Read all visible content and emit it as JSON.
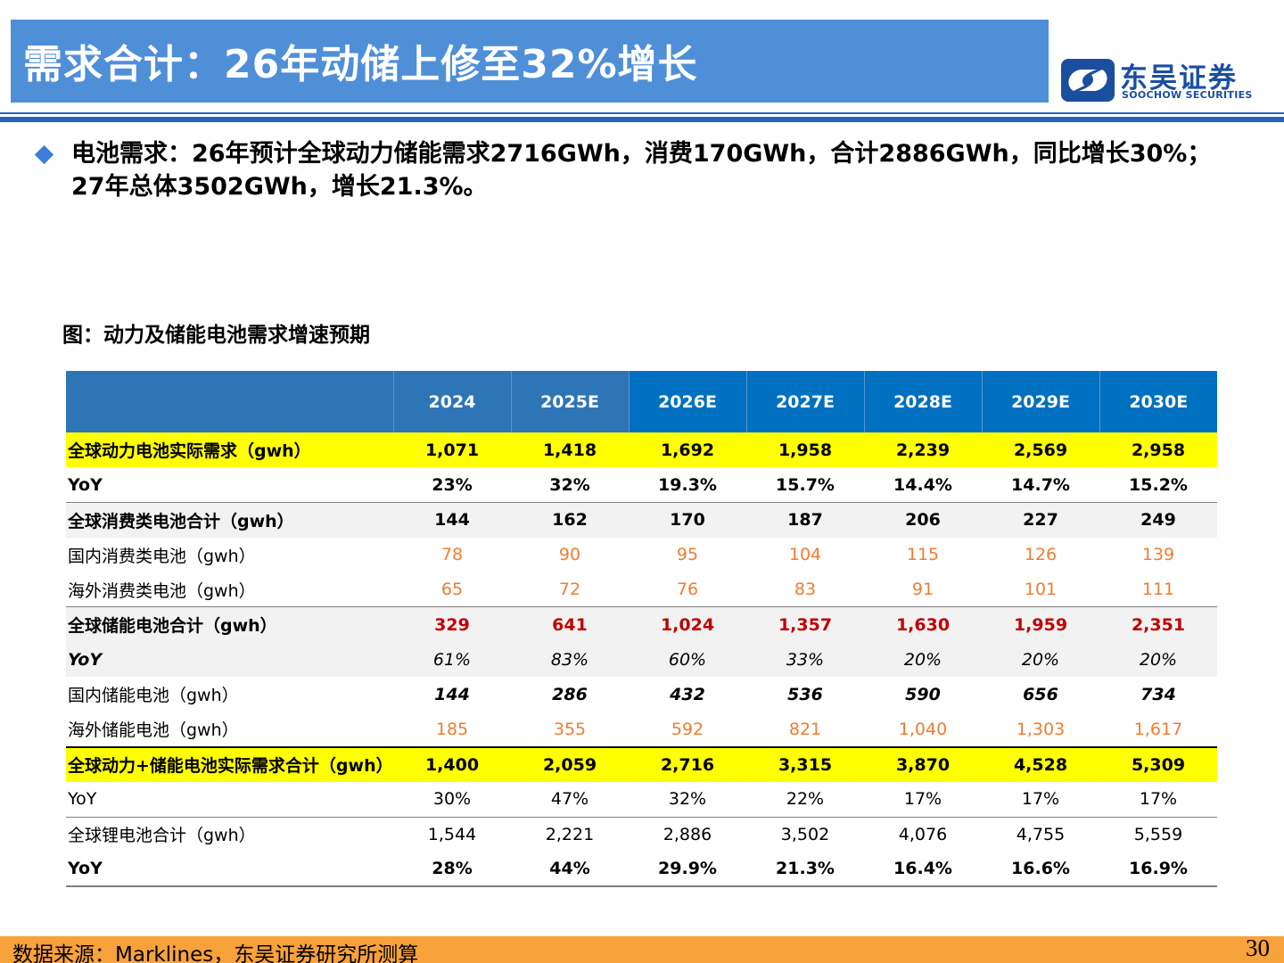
{
  "header": {
    "title": "需求合计：26年动储上修至32%增长",
    "logo_cn": "东吴证券",
    "logo_en": "SOOCHOW SECURITIES"
  },
  "bullet": {
    "line1": "电池需求：26年预计全球动力储能需求2716GWh，消费170GWh，合计2886GWh，同比增长30%；",
    "line2": "27年总体3502GWh，增长21.3%。"
  },
  "figure_caption": "图：动力及储能电池需求增速预期",
  "table": {
    "header": [
      "",
      "2024",
      "2025E",
      "2026E",
      "2027E",
      "2028E",
      "2029E",
      "2030E"
    ],
    "rows": [
      {
        "label": "全球动力电池实际需求（gwh）",
        "values": [
          "1,071",
          "1,418",
          "1,692",
          "1,958",
          "2,239",
          "2,569",
          "2,958"
        ]
      },
      {
        "label": "YoY",
        "values": [
          "23%",
          "32%",
          "19.3%",
          "15.7%",
          "14.4%",
          "14.7%",
          "15.2%"
        ]
      },
      {
        "label": "全球消费类电池合计（gwh）",
        "values": [
          "144",
          "162",
          "170",
          "187",
          "206",
          "227",
          "249"
        ]
      },
      {
        "label": "国内消费类电池（gwh）",
        "values": [
          "78",
          "90",
          "95",
          "104",
          "115",
          "126",
          "139"
        ]
      },
      {
        "label": "海外消费类电池（gwh）",
        "values": [
          "65",
          "72",
          "76",
          "83",
          "91",
          "101",
          "111"
        ]
      },
      {
        "label": "全球储能电池合计（gwh）",
        "values": [
          "329",
          "641",
          "1,024",
          "1,357",
          "1,630",
          "1,959",
          "2,351"
        ]
      },
      {
        "label": "YoY",
        "values": [
          "61%",
          "83%",
          "60%",
          "33%",
          "20%",
          "20%",
          "20%"
        ]
      },
      {
        "label": "国内储能电池（gwh）",
        "values": [
          "144",
          "286",
          "432",
          "536",
          "590",
          "656",
          "734"
        ]
      },
      {
        "label": "海外储能电池（gwh）",
        "values": [
          "185",
          "355",
          "592",
          "821",
          "1,040",
          "1,303",
          "1,617"
        ]
      },
      {
        "label": "全球动力+储能电池实际需求合计（gwh）",
        "values": [
          "1,400",
          "2,059",
          "2,716",
          "3,315",
          "3,870",
          "4,528",
          "5,309"
        ]
      },
      {
        "label": "YoY",
        "values": [
          "30%",
          "47%",
          "32%",
          "22%",
          "17%",
          "17%",
          "17%"
        ]
      },
      {
        "label": "全球锂电池合计（gwh）",
        "values": [
          "1,544",
          "2,221",
          "2,886",
          "3,502",
          "4,076",
          "4,755",
          "5,559"
        ]
      },
      {
        "label": "YoY",
        "values": [
          "28%",
          "44%",
          "29.9%",
          "21.3%",
          "16.4%",
          "16.6%",
          "16.9%"
        ]
      }
    ]
  },
  "footer": {
    "source": "数据来源：Marklines，东吴证券研究所测算",
    "page_number": "30"
  },
  "colors": {
    "title_bar": "#4f8fd8",
    "brand_blue": "#1a4fa0",
    "table_header_actual": "#2e75b6",
    "table_header_forecast": "#0070c0",
    "highlight_yellow": "#ffff00",
    "value_orange": "#ed7d31",
    "value_red": "#c00000",
    "footer_bar": "#f7a23b"
  },
  "icons": {
    "bullet": "diamond-bullet-icon",
    "logo": "soochow-logo-icon"
  }
}
